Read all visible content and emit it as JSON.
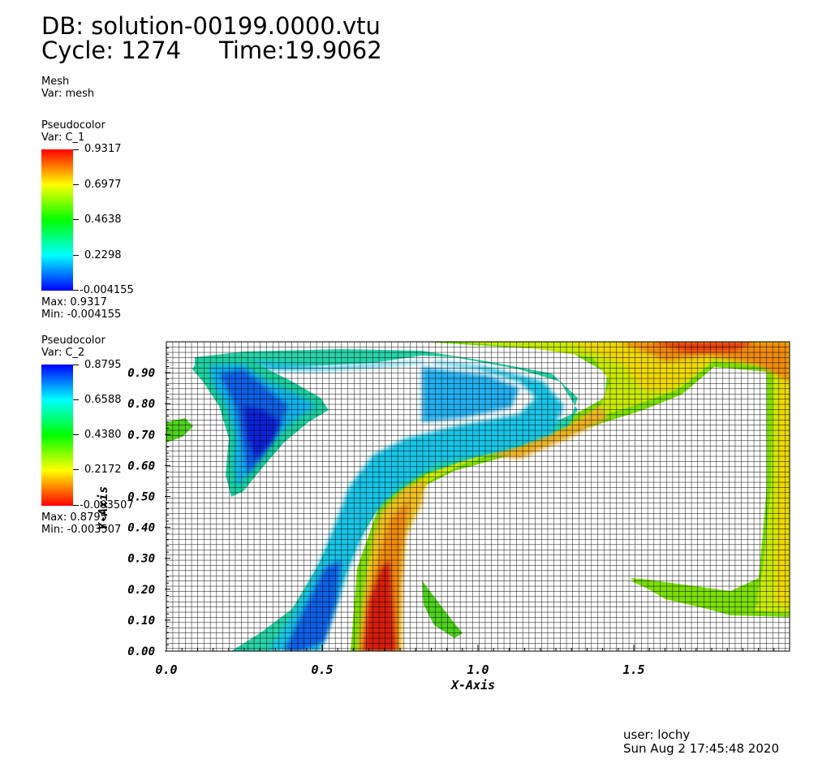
{
  "header": {
    "db_label": "DB: solution-00199.0000.vtu",
    "cycle_label": "Cycle: 1274",
    "time_label": "Time:19.9062"
  },
  "mesh_legend": {
    "title": "Mesh",
    "var": "Var: mesh"
  },
  "legend_c1": {
    "title": "Pseudocolor",
    "var": "Var: C_1",
    "ticks": [
      "0.9317",
      "0.6977",
      "0.4638",
      "0.2298",
      "-0.004155"
    ],
    "max_label": "Max:  0.9317",
    "min_label": "Min: -0.004155",
    "colors": [
      "#0000ff",
      "#00ffff",
      "#00ff00",
      "#ffff00",
      "#ff0000"
    ]
  },
  "legend_c2": {
    "title": "Pseudocolor",
    "var": "Var: C_2",
    "ticks": [
      "0.8795",
      "0.6588",
      "0.4380",
      "0.2172",
      "-0.003507"
    ],
    "max_label": "Max:  0.8795",
    "min_label": "Min: -0.003507",
    "colors": [
      "#ff0000",
      "#ffff00",
      "#00ff00",
      "#00ffff",
      "#0000ff"
    ]
  },
  "footer": {
    "user": "user: lochy",
    "date": "Sun Aug  2 17:45:48 2020"
  },
  "chart_data": {
    "type": "heatmap",
    "xlabel": "X-Axis",
    "ylabel": "Y-Axis",
    "xlim": [
      0.0,
      2.0
    ],
    "ylim": [
      0.0,
      1.0
    ],
    "x_ticks": [
      "0.0",
      "0.5",
      "1.0",
      "1.5"
    ],
    "y_ticks": [
      "0.00",
      "0.10",
      "0.20",
      "0.30",
      "0.40",
      "0.50",
      "0.60",
      "0.70",
      "0.80",
      "0.90"
    ],
    "mesh": "uniform rectangular grid",
    "fields": [
      "C_1",
      "C_2"
    ]
  }
}
